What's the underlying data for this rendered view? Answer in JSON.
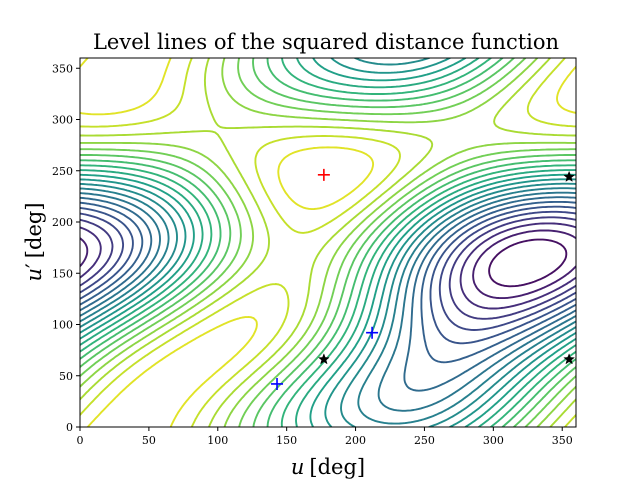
{
  "chart_data": {
    "type": "contour",
    "title": "Level lines of the squared distance function",
    "xlabel": {
      "var": "u",
      "unit": "[deg]"
    },
    "ylabel": {
      "var": "u",
      "prime": "′",
      "unit": "[deg]"
    },
    "xlim": [
      0,
      360
    ],
    "ylim": [
      0,
      360
    ],
    "xticks": [
      0,
      50,
      100,
      150,
      200,
      250,
      300,
      350
    ],
    "yticks": [
      0,
      50,
      100,
      150,
      200,
      250,
      300,
      350
    ],
    "grid": false,
    "colormap": "viridis",
    "contour_levels": 22,
    "markers": {
      "maximum": {
        "symbol": "plus",
        "color": "#ff0000",
        "points": [
          [
            177,
            246
          ]
        ]
      },
      "saddle_points": {
        "symbol": "plus",
        "color": "#0000ff",
        "points": [
          [
            143,
            42
          ],
          [
            212,
            92
          ]
        ]
      },
      "minima": {
        "symbol": "star",
        "color": "#000000",
        "points": [
          [
            177,
            66
          ],
          [
            355,
            244
          ],
          [
            355,
            66
          ]
        ]
      }
    }
  }
}
